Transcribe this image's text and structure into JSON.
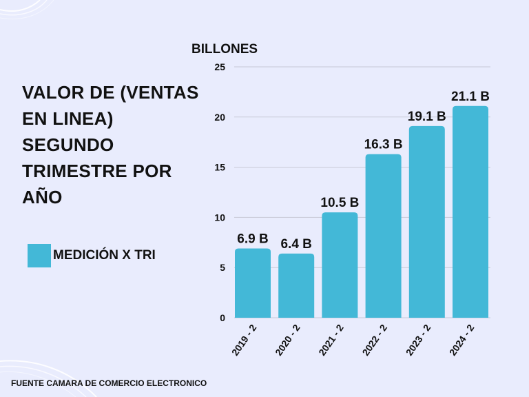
{
  "title_lines": [
    "VALOR DE (VENTAS",
    "EN LINEA)",
    "SEGUNDO",
    "TRIMESTRE POR",
    "AÑO"
  ],
  "legend_label": "MEDICIÓN X TRI",
  "source": "FUENTE CAMARA DE COMERCIO ELECTRONICO",
  "colors": {
    "background": "#e9ecfd",
    "bar": "#43b8d7",
    "grid": "#c7c9d6",
    "text": "#111111"
  },
  "chart_data": {
    "type": "bar",
    "title": "VALOR DE (VENTAS EN LINEA) SEGUNDO TRIMESTRE POR AÑO",
    "ylabel": "BILLONES",
    "xlabel": "",
    "categories": [
      "2019 - 2",
      "2020 - 2",
      "2021 - 2",
      "2022 - 2",
      "2023 - 2",
      "2024 - 2"
    ],
    "series": [
      {
        "name": "MEDICIÓN X TRI",
        "values": [
          6.9,
          6.4,
          10.5,
          16.3,
          19.1,
          21.1
        ]
      }
    ],
    "data_labels": [
      "6.9 B",
      "6.4 B",
      "10.5 B",
      "16.3 B",
      "19.1 B",
      "21.1 B"
    ],
    "ylim": [
      0,
      25
    ],
    "yticks": [
      "0",
      "5",
      "10",
      "15",
      "20",
      "25"
    ],
    "grid": true,
    "legend_position": "left"
  }
}
